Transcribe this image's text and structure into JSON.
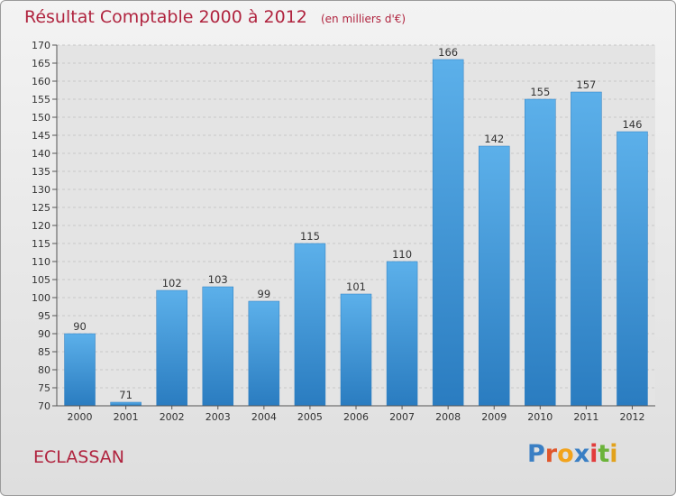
{
  "chart_data": {
    "type": "bar",
    "title": "Résultat Comptable 2000 à 2012",
    "subtitle": "(en milliers d'€)",
    "categories": [
      "2000",
      "2001",
      "2002",
      "2003",
      "2004",
      "2005",
      "2006",
      "2007",
      "2008",
      "2009",
      "2010",
      "2011",
      "2012"
    ],
    "values": [
      90,
      71,
      102,
      103,
      99,
      115,
      101,
      110,
      166,
      142,
      155,
      157,
      146
    ],
    "data_labels": [
      "90",
      "71",
      "102",
      "103",
      "99",
      "115",
      "101",
      "110",
      "166",
      "142",
      "155",
      "157",
      "146"
    ],
    "xlabel": "",
    "ylabel": "",
    "ylim": [
      70,
      170
    ],
    "ytick_step": 5,
    "yticks": [
      "70",
      "75",
      "80",
      "85",
      "90",
      "95",
      "100",
      "105",
      "110",
      "115",
      "120",
      "125",
      "130",
      "135",
      "140",
      "145",
      "150",
      "155",
      "160",
      "165",
      "170"
    ],
    "grid": true,
    "bar_color": "#4ea3e0"
  },
  "commune": "ECLASSAN",
  "logo": {
    "letters": [
      "P",
      "r",
      "o",
      "x",
      "i",
      "t",
      "i"
    ],
    "colors": [
      "#3a7fc4",
      "#e0562b",
      "#f2a31c",
      "#3a7fc4",
      "#e23c3c",
      "#6bb33a",
      "#e2a21c"
    ]
  }
}
